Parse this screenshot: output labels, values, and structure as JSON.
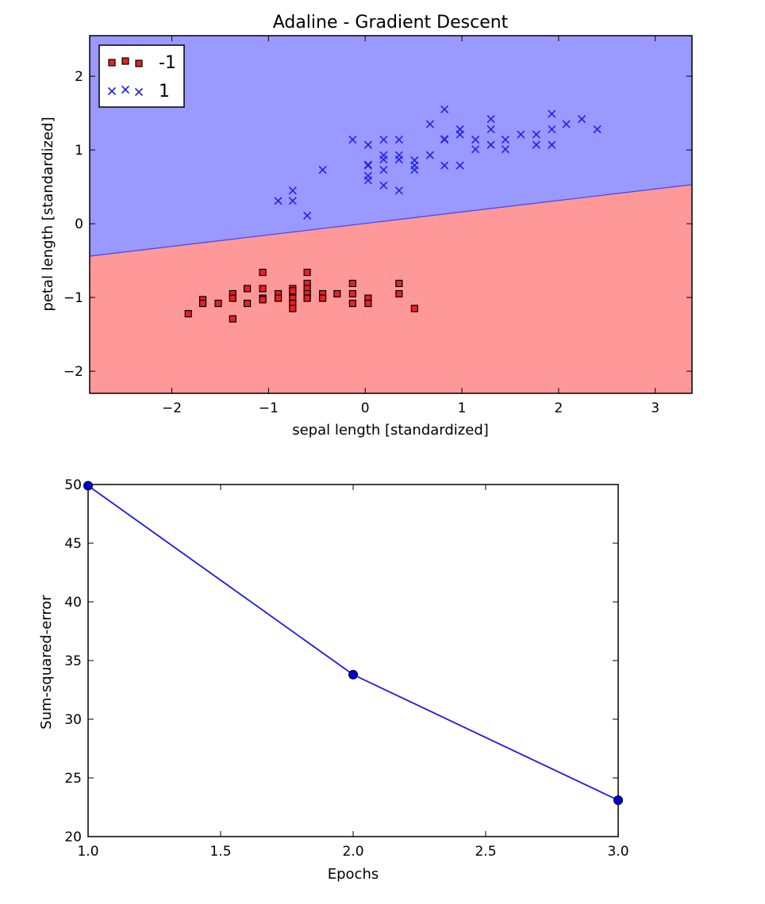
{
  "chart_data": [
    {
      "type": "scatter",
      "title": "Adaline - Gradient Descent",
      "xlabel": "sepal length [standardized]",
      "ylabel": "petal length [standardized]",
      "xlim": [
        -2.85,
        3.38
      ],
      "ylim": [
        -2.3,
        2.55
      ],
      "xticks": [
        -2,
        -1,
        0,
        1,
        2,
        3
      ],
      "yticks": [
        -2,
        -1,
        0,
        1,
        2
      ],
      "xtick_labels": [
        "−2",
        "−1",
        "0",
        "1",
        "2",
        "3"
      ],
      "ytick_labels": [
        "−2",
        "−1",
        "0",
        "1",
        "2"
      ],
      "decision_regions": [
        {
          "class": "-1",
          "color": "#ff9999"
        },
        {
          "class": "1",
          "color": "#9999ff"
        }
      ],
      "decision_boundary": {
        "x": [
          -2.85,
          3.38
        ],
        "y": [
          -0.44,
          0.53
        ]
      },
      "legend": {
        "position": "top-left"
      },
      "series": [
        {
          "name": "-1",
          "marker": "square",
          "color": "#e82020",
          "points": [
            [
              -1.83,
              -1.22
            ],
            [
              -1.68,
              -1.03
            ],
            [
              -1.68,
              -1.08
            ],
            [
              -1.52,
              -1.08
            ],
            [
              -1.37,
              -1.29
            ],
            [
              -1.37,
              -0.95
            ],
            [
              -1.37,
              -1.01
            ],
            [
              -1.22,
              -0.88
            ],
            [
              -1.22,
              -1.08
            ],
            [
              -1.06,
              -0.66
            ],
            [
              -1.06,
              -0.88
            ],
            [
              -1.06,
              -1.01
            ],
            [
              -1.06,
              -1.03
            ],
            [
              -0.9,
              -0.95
            ],
            [
              -0.9,
              -1.01
            ],
            [
              -0.75,
              -0.88
            ],
            [
              -0.75,
              -0.95
            ],
            [
              -0.75,
              -1.01
            ],
            [
              -0.75,
              -1.08
            ],
            [
              -0.75,
              -1.15
            ],
            [
              -0.75,
              -0.91
            ],
            [
              -0.6,
              -0.66
            ],
            [
              -0.6,
              -0.81
            ],
            [
              -0.6,
              -0.88
            ],
            [
              -0.6,
              -0.95
            ],
            [
              -0.6,
              -1.01
            ],
            [
              -0.44,
              -0.95
            ],
            [
              -0.44,
              -1.01
            ],
            [
              -0.29,
              -0.95
            ],
            [
              -0.13,
              -0.81
            ],
            [
              -0.13,
              -0.95
            ],
            [
              -0.13,
              -1.08
            ],
            [
              0.03,
              -1.01
            ],
            [
              0.03,
              -1.08
            ],
            [
              0.35,
              -0.81
            ],
            [
              0.35,
              -0.95
            ],
            [
              0.51,
              -1.15
            ]
          ]
        },
        {
          "name": "1",
          "marker": "x",
          "color": "#2222ee",
          "points": [
            [
              -0.9,
              0.31
            ],
            [
              -0.75,
              0.31
            ],
            [
              -0.75,
              0.45
            ],
            [
              -0.6,
              0.11
            ],
            [
              -0.44,
              0.73
            ],
            [
              -0.13,
              1.14
            ],
            [
              0.03,
              0.59
            ],
            [
              0.03,
              0.65
            ],
            [
              0.03,
              0.79
            ],
            [
              0.03,
              0.8
            ],
            [
              0.03,
              1.07
            ],
            [
              0.19,
              0.52
            ],
            [
              0.19,
              0.73
            ],
            [
              0.19,
              0.87
            ],
            [
              0.19,
              0.93
            ],
            [
              0.19,
              1.14
            ],
            [
              0.35,
              0.45
            ],
            [
              0.35,
              0.87
            ],
            [
              0.35,
              0.93
            ],
            [
              0.35,
              1.14
            ],
            [
              0.51,
              0.73
            ],
            [
              0.51,
              0.79
            ],
            [
              0.51,
              0.86
            ],
            [
              0.67,
              0.93
            ],
            [
              0.67,
              1.35
            ],
            [
              0.82,
              0.79
            ],
            [
              0.82,
              1.14
            ],
            [
              0.82,
              1.15
            ],
            [
              0.82,
              1.55
            ],
            [
              0.98,
              0.79
            ],
            [
              0.98,
              1.21
            ],
            [
              0.98,
              1.28
            ],
            [
              1.14,
              1.01
            ],
            [
              1.14,
              1.14
            ],
            [
              1.3,
              1.07
            ],
            [
              1.3,
              1.28
            ],
            [
              1.3,
              1.42
            ],
            [
              1.45,
              1.01
            ],
            [
              1.45,
              1.14
            ],
            [
              1.61,
              1.21
            ],
            [
              1.77,
              1.07
            ],
            [
              1.77,
              1.21
            ],
            [
              1.93,
              1.07
            ],
            [
              1.93,
              1.28
            ],
            [
              1.93,
              1.49
            ],
            [
              2.08,
              1.35
            ],
            [
              2.24,
              1.42
            ],
            [
              2.4,
              1.28
            ]
          ]
        }
      ]
    },
    {
      "type": "line",
      "title": "",
      "xlabel": "Epochs",
      "ylabel": "Sum-squared-error",
      "xlim": [
        1.0,
        3.0
      ],
      "ylim": [
        20,
        50
      ],
      "xticks": [
        1.0,
        1.5,
        2.0,
        2.5,
        3.0
      ],
      "yticks": [
        20,
        25,
        30,
        35,
        40,
        45,
        50
      ],
      "xtick_labels": [
        "1.0",
        "1.5",
        "2.0",
        "2.5",
        "3.0"
      ],
      "ytick_labels": [
        "20",
        "25",
        "30",
        "35",
        "40",
        "45",
        "50"
      ],
      "series": [
        {
          "marker": "circle",
          "color": "#1a1aee",
          "x": [
            1.0,
            2.0,
            3.0
          ],
          "y": [
            49.9,
            33.8,
            23.1
          ]
        }
      ]
    }
  ]
}
